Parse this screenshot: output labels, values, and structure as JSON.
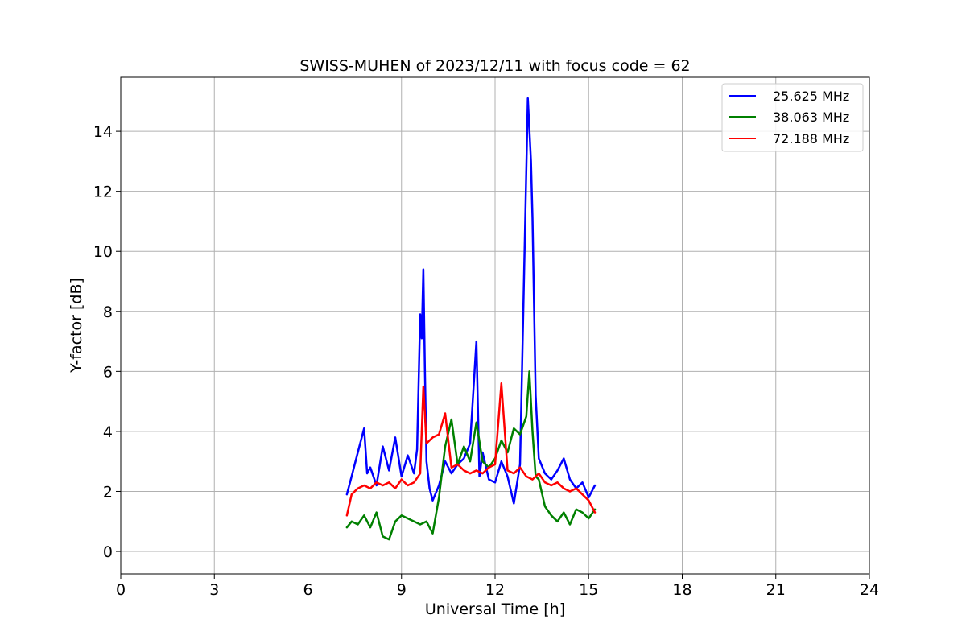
{
  "chart_data": {
    "type": "line",
    "title": "SWISS-MUHEN of 2023/12/11 with focus code = 62",
    "xlabel": "Universal Time [h]",
    "ylabel": "Y-factor [dB]",
    "xlim": [
      0,
      24
    ],
    "ylim": [
      -0.75,
      15.8
    ],
    "xticks": [
      0,
      3,
      6,
      9,
      12,
      15,
      18,
      21,
      24
    ],
    "yticks": [
      0,
      2,
      4,
      6,
      8,
      10,
      12,
      14
    ],
    "grid": true,
    "legend_position": "top-right",
    "series": [
      {
        "name": "25.625 MHz",
        "color": "#0000ff",
        "x": [
          7.25,
          7.4,
          7.6,
          7.8,
          7.9,
          8.0,
          8.2,
          8.4,
          8.6,
          8.8,
          9.0,
          9.2,
          9.4,
          9.5,
          9.6,
          9.65,
          9.7,
          9.75,
          9.8,
          9.9,
          10.0,
          10.2,
          10.4,
          10.6,
          10.8,
          11.0,
          11.2,
          11.4,
          11.5,
          11.6,
          11.8,
          12.0,
          12.2,
          12.4,
          12.6,
          12.8,
          13.0,
          13.05,
          13.1,
          13.15,
          13.2,
          13.3,
          13.4,
          13.6,
          13.8,
          14.0,
          14.2,
          14.4,
          14.6,
          14.8,
          15.0,
          15.2
        ],
        "y": [
          1.9,
          2.5,
          3.3,
          4.1,
          2.6,
          2.8,
          2.2,
          3.5,
          2.7,
          3.8,
          2.5,
          3.2,
          2.6,
          3.4,
          7.9,
          7.1,
          9.4,
          6.1,
          3.0,
          2.1,
          1.7,
          2.2,
          3.0,
          2.6,
          2.9,
          3.1,
          3.6,
          7.0,
          2.5,
          3.3,
          2.4,
          2.3,
          3.0,
          2.5,
          1.6,
          2.9,
          12.7,
          15.1,
          14.1,
          13.0,
          11.1,
          5.2,
          3.1,
          2.6,
          2.4,
          2.7,
          3.1,
          2.4,
          2.1,
          2.3,
          1.8,
          2.2
        ]
      },
      {
        "name": "38.063 MHz",
        "color": "#008000",
        "x": [
          7.25,
          7.4,
          7.6,
          7.8,
          8.0,
          8.2,
          8.4,
          8.6,
          8.8,
          9.0,
          9.2,
          9.4,
          9.6,
          9.8,
          10.0,
          10.2,
          10.4,
          10.6,
          10.8,
          11.0,
          11.2,
          11.4,
          11.6,
          11.8,
          12.0,
          12.2,
          12.4,
          12.6,
          12.8,
          13.0,
          13.1,
          13.2,
          13.3,
          13.4,
          13.6,
          13.8,
          14.0,
          14.2,
          14.4,
          14.6,
          14.8,
          15.0,
          15.2
        ],
        "y": [
          0.8,
          1.0,
          0.9,
          1.2,
          0.8,
          1.3,
          0.5,
          0.4,
          1.0,
          1.2,
          1.1,
          1.0,
          0.9,
          1.0,
          0.6,
          1.8,
          3.5,
          4.4,
          2.9,
          3.5,
          3.0,
          4.3,
          3.0,
          2.8,
          3.1,
          3.7,
          3.3,
          4.1,
          3.9,
          4.5,
          6.0,
          4.0,
          2.5,
          2.4,
          1.5,
          1.2,
          1.0,
          1.3,
          0.9,
          1.4,
          1.3,
          1.1,
          1.4
        ]
      },
      {
        "name": "72.188 MHz",
        "color": "#ff0000",
        "x": [
          7.25,
          7.4,
          7.6,
          7.8,
          8.0,
          8.2,
          8.4,
          8.6,
          8.8,
          9.0,
          9.2,
          9.4,
          9.6,
          9.7,
          9.8,
          10.0,
          10.2,
          10.4,
          10.6,
          10.8,
          11.0,
          11.2,
          11.4,
          11.6,
          11.8,
          12.0,
          12.2,
          12.4,
          12.6,
          12.8,
          13.0,
          13.2,
          13.4,
          13.6,
          13.8,
          14.0,
          14.2,
          14.4,
          14.6,
          14.8,
          15.0,
          15.2
        ],
        "y": [
          1.2,
          1.9,
          2.1,
          2.2,
          2.1,
          2.3,
          2.2,
          2.3,
          2.1,
          2.4,
          2.2,
          2.3,
          2.6,
          5.5,
          3.6,
          3.8,
          3.9,
          4.6,
          2.8,
          2.9,
          2.7,
          2.6,
          2.7,
          2.6,
          2.8,
          2.9,
          5.6,
          2.7,
          2.6,
          2.8,
          2.5,
          2.4,
          2.6,
          2.3,
          2.2,
          2.3,
          2.1,
          2.0,
          2.1,
          1.9,
          1.7,
          1.3
        ]
      }
    ]
  }
}
